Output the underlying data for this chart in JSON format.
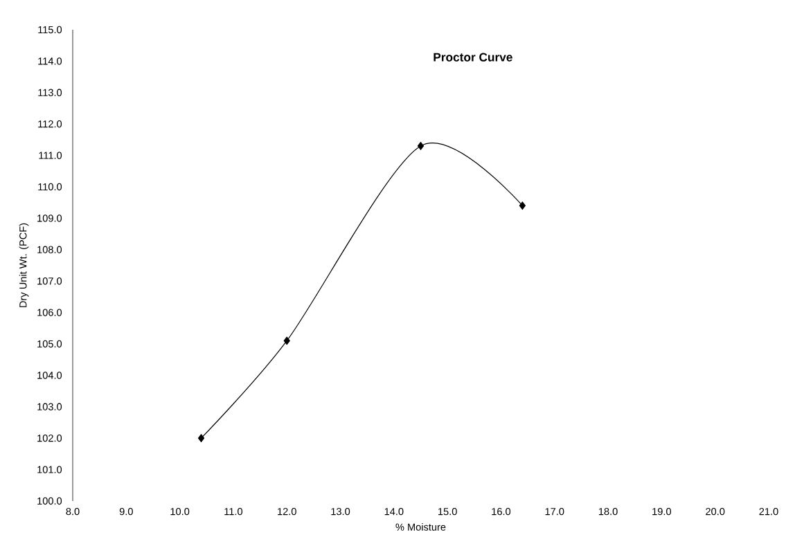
{
  "chart_data": {
    "type": "line",
    "title": "Proctor Curve",
    "xlabel": "% Moisture",
    "ylabel": "Dry Unit Wt. (PCF)",
    "x": [
      10.4,
      12.0,
      14.5,
      16.4
    ],
    "series": [
      {
        "color": "#000000",
        "values": [
          102.0,
          105.1,
          111.3,
          109.4
        ]
      }
    ],
    "xlim": [
      8.0,
      21.0
    ],
    "ylim": [
      100.0,
      115.0
    ],
    "xticks": [
      {
        "value": 8,
        "label": "8.0"
      },
      {
        "value": 9,
        "label": "9.0"
      },
      {
        "value": 10,
        "label": "10.0"
      },
      {
        "value": 11,
        "label": "11.0"
      },
      {
        "value": 12,
        "label": "12.0"
      },
      {
        "value": 13,
        "label": "13.0"
      },
      {
        "value": 14,
        "label": "14.0"
      },
      {
        "value": 15,
        "label": "15.0"
      },
      {
        "value": 16,
        "label": "16.0"
      },
      {
        "value": 17,
        "label": "17.0"
      },
      {
        "value": 18,
        "label": "18.0"
      },
      {
        "value": 19,
        "label": "19.0"
      },
      {
        "value": 20,
        "label": "20.0"
      },
      {
        "value": 21,
        "label": "21.0"
      }
    ],
    "yticks": [
      {
        "value": 100,
        "label": "100.0"
      },
      {
        "value": 101,
        "label": "101.0"
      },
      {
        "value": 102,
        "label": "102.0"
      },
      {
        "value": 103,
        "label": "103.0"
      },
      {
        "value": 104,
        "label": "104.0"
      },
      {
        "value": 105,
        "label": "105.0"
      },
      {
        "value": 106,
        "label": "106.0"
      },
      {
        "value": 107,
        "label": "107.0"
      },
      {
        "value": 108,
        "label": "108.0"
      },
      {
        "value": 109,
        "label": "109.0"
      },
      {
        "value": 110,
        "label": "110.0"
      },
      {
        "value": 111,
        "label": "111.0"
      },
      {
        "value": 112,
        "label": "112.0"
      },
      {
        "value": 113,
        "label": "113.0"
      },
      {
        "value": 114,
        "label": "114.0"
      },
      {
        "value": 115,
        "label": "115.0"
      }
    ],
    "marker": "diamond",
    "line_style": "solid"
  }
}
